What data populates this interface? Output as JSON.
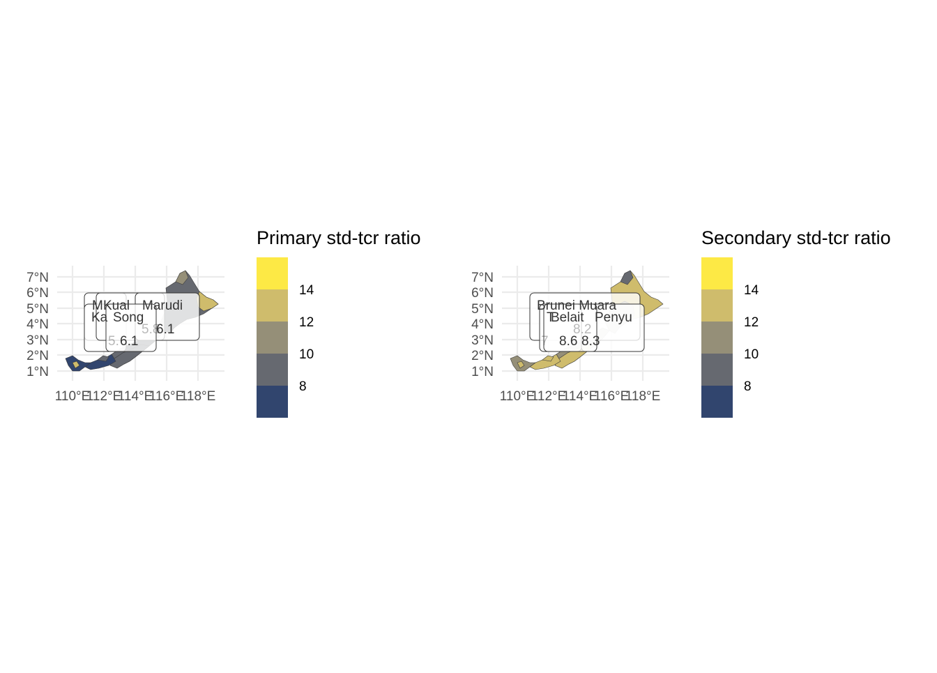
{
  "panels": [
    {
      "id": "primary",
      "legend_title": "Primary std-tcr ratio",
      "legend_ticks": [
        "14",
        "12",
        "10",
        "8"
      ],
      "y_ticks": [
        "7°N",
        "6°N",
        "5°N",
        "4°N",
        "3°N",
        "2°N",
        "1°N"
      ],
      "x_ticks": [
        "110°E",
        "112°E",
        "114°E",
        "116°E",
        "118°E"
      ],
      "labels": [
        {
          "name": "M",
          "value": ""
        },
        {
          "name": "Ka",
          "value": "5."
        },
        {
          "name": "Kual",
          "value": "5.8"
        },
        {
          "name": "Song",
          "value": "6.1"
        },
        {
          "name": "Marudi",
          "value": "6.1"
        }
      ]
    },
    {
      "id": "secondary",
      "legend_title": "Secondary std-tcr ratio",
      "legend_ticks": [
        "14",
        "12",
        "10",
        "8"
      ],
      "y_ticks": [
        "7°N",
        "6°N",
        "5°N",
        "4°N",
        "3°N",
        "2°N",
        "1°N"
      ],
      "x_ticks": [
        "110°E",
        "112°E",
        "114°E",
        "116°E",
        "118°E"
      ],
      "labels": [
        {
          "name": "Brunei Muara",
          "value": "8.2"
        },
        {
          "name": "T",
          "value": "7"
        },
        {
          "name": "Belait",
          "value": "8.6"
        },
        {
          "name": "Penyu",
          "value": "8.3"
        }
      ]
    }
  ],
  "colors": {
    "bin_lt8": "#31456e",
    "bin_8_10": "#666970",
    "bin_10_12": "#958f78",
    "bin_12_14": "#cfbc6c",
    "bin_gt14": "#fde945",
    "grid": "#ebebeb"
  }
}
